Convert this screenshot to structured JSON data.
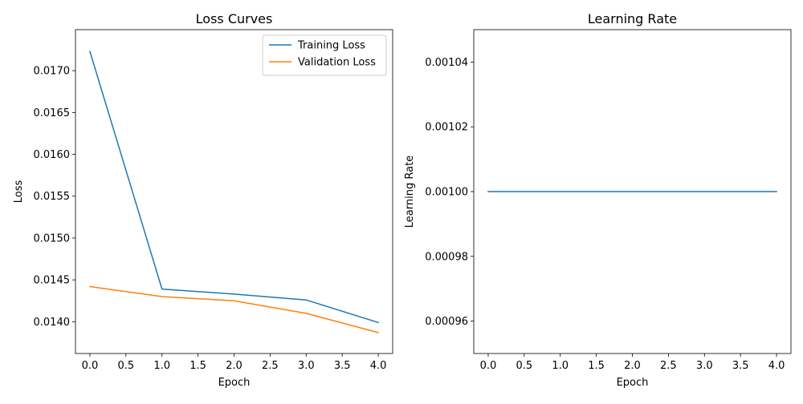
{
  "chart_data": [
    {
      "type": "line",
      "title": "Loss Curves",
      "xlabel": "Epoch",
      "ylabel": "Loss",
      "x": [
        0,
        1,
        2,
        3,
        4
      ],
      "xticks": [
        "0.0",
        "0.5",
        "1.0",
        "1.5",
        "2.0",
        "2.5",
        "3.0",
        "3.5",
        "4.0"
      ],
      "xtick_values": [
        0,
        0.5,
        1,
        1.5,
        2,
        2.5,
        3,
        3.5,
        4
      ],
      "yticks": [
        "0.0140",
        "0.0145",
        "0.0150",
        "0.0155",
        "0.0160",
        "0.0165",
        "0.0170"
      ],
      "ytick_values": [
        0.014,
        0.0145,
        0.015,
        0.0155,
        0.016,
        0.0165,
        0.017
      ],
      "xlim": [
        -0.2,
        4.2
      ],
      "ylim": [
        0.01362,
        0.01749
      ],
      "legend": "top-right",
      "grid": false,
      "series": [
        {
          "name": "Training Loss",
          "color": "#1f77b4",
          "values": [
            0.01723,
            0.01439,
            0.01433,
            0.01426,
            0.01399
          ]
        },
        {
          "name": "Validation Loss",
          "color": "#ff7f0e",
          "values": [
            0.01442,
            0.0143,
            0.01425,
            0.0141,
            0.01387
          ]
        }
      ]
    },
    {
      "type": "line",
      "title": "Learning Rate",
      "xlabel": "Epoch",
      "ylabel": "Learning Rate",
      "x": [
        0,
        1,
        2,
        3,
        4
      ],
      "xticks": [
        "0.0",
        "0.5",
        "1.0",
        "1.5",
        "2.0",
        "2.5",
        "3.0",
        "3.5",
        "4.0"
      ],
      "xtick_values": [
        0,
        0.5,
        1,
        1.5,
        2,
        2.5,
        3,
        3.5,
        4
      ],
      "yticks": [
        "0.00096",
        "0.00098",
        "0.00100",
        "0.00102",
        "0.00104"
      ],
      "ytick_values": [
        0.00096,
        0.00098,
        0.001,
        0.00102,
        0.00104
      ],
      "xlim": [
        -0.2,
        4.2
      ],
      "ylim": [
        0.00095,
        0.00105
      ],
      "legend": "none",
      "grid": false,
      "series": [
        {
          "color": "#1f77b4",
          "values": [
            0.001,
            0.001,
            0.001,
            0.001,
            0.001
          ]
        }
      ]
    }
  ]
}
